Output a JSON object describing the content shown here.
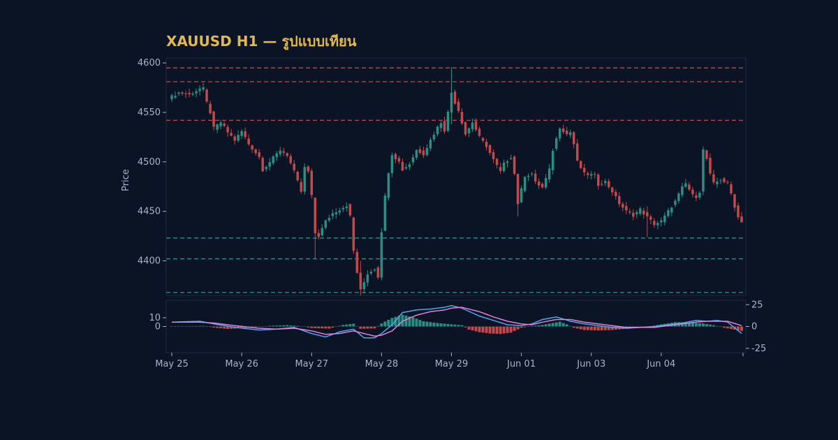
{
  "colors": {
    "background": "#0b1425",
    "panel": "#0b1425",
    "frame": "#1f2a3d",
    "text": "#aab3c5",
    "title": "#e1b84d",
    "bull": "#2a8f83",
    "bear": "#c4494a",
    "support": "#2f8f87",
    "resistance": "#c4494a",
    "macd_line": "#4aa8f0",
    "signal_line": "#e27fd6"
  },
  "chart_data": {
    "type": "candlestick",
    "title": "XAUUSD H1 — รูปแบบเทียน",
    "ylabel": "Price",
    "ylim": [
      4365,
      4605
    ],
    "yticks": [
      4400,
      4450,
      4500,
      4550,
      4600
    ],
    "x_tick_labels": [
      "May 25",
      "May 26",
      "May 27",
      "May 28",
      "May 29",
      "Jun 01",
      "Jun 03",
      "Jun 04"
    ],
    "x_tick_positions": [
      0,
      20,
      40,
      60,
      80,
      100,
      120,
      140
    ],
    "x_range": [
      0,
      163
    ],
    "resistance_levels": [
      4595,
      4581,
      4542
    ],
    "support_levels": [
      4423,
      4402,
      4368
    ],
    "key_closes": [
      [
        0,
        4566
      ],
      [
        2,
        4570
      ],
      [
        5,
        4568
      ],
      [
        8,
        4574
      ],
      [
        9,
        4574
      ],
      [
        10,
        4560
      ],
      [
        11,
        4550
      ],
      [
        12,
        4534
      ],
      [
        14,
        4540
      ],
      [
        16,
        4530
      ],
      [
        18,
        4522
      ],
      [
        20,
        4531
      ],
      [
        22,
        4518
      ],
      [
        25,
        4505
      ],
      [
        26,
        4492
      ],
      [
        28,
        4500
      ],
      [
        31,
        4512
      ],
      [
        33,
        4507
      ],
      [
        35,
        4490
      ],
      [
        37,
        4470
      ],
      [
        38,
        4494
      ],
      [
        39,
        4490
      ],
      [
        40,
        4465
      ],
      [
        41,
        4428
      ],
      [
        42,
        4425
      ],
      [
        44,
        4440
      ],
      [
        46,
        4448
      ],
      [
        48,
        4452
      ],
      [
        50,
        4456
      ],
      [
        51,
        4445
      ],
      [
        52,
        4410
      ],
      [
        53,
        4388
      ],
      [
        54,
        4370
      ],
      [
        56,
        4387
      ],
      [
        58,
        4392
      ],
      [
        59,
        4384
      ],
      [
        60,
        4430
      ],
      [
        61,
        4465
      ],
      [
        62,
        4490
      ],
      [
        63,
        4508
      ],
      [
        65,
        4500
      ],
      [
        66,
        4492
      ],
      [
        68,
        4498
      ],
      [
        70,
        4512
      ],
      [
        72,
        4508
      ],
      [
        74,
        4522
      ],
      [
        76,
        4535
      ],
      [
        77,
        4540
      ],
      [
        78,
        4532
      ],
      [
        79,
        4550
      ],
      [
        80,
        4570
      ],
      [
        81,
        4560
      ],
      [
        82,
        4552
      ],
      [
        84,
        4528
      ],
      [
        86,
        4540
      ],
      [
        88,
        4525
      ],
      [
        90,
        4516
      ],
      [
        92,
        4502
      ],
      [
        94,
        4490
      ],
      [
        95,
        4498
      ],
      [
        97,
        4505
      ],
      [
        98,
        4488
      ],
      [
        99,
        4458
      ],
      [
        100,
        4472
      ],
      [
        101,
        4486
      ],
      [
        103,
        4488
      ],
      [
        104,
        4479
      ],
      [
        106,
        4474
      ],
      [
        108,
        4492
      ],
      [
        109,
        4512
      ],
      [
        111,
        4535
      ],
      [
        113,
        4528
      ],
      [
        114,
        4530
      ],
      [
        115,
        4518
      ],
      [
        116,
        4500
      ],
      [
        118,
        4488
      ],
      [
        120,
        4487
      ],
      [
        121,
        4486
      ],
      [
        122,
        4477
      ],
      [
        124,
        4480
      ],
      [
        126,
        4470
      ],
      [
        128,
        4458
      ],
      [
        130,
        4450
      ],
      [
        132,
        4446
      ],
      [
        134,
        4452
      ],
      [
        136,
        4444
      ],
      [
        138,
        4437
      ],
      [
        140,
        4440
      ],
      [
        142,
        4450
      ],
      [
        144,
        4460
      ],
      [
        146,
        4474
      ],
      [
        147,
        4478
      ],
      [
        149,
        4466
      ],
      [
        150,
        4465
      ],
      [
        151,
        4470
      ],
      [
        152,
        4512
      ],
      [
        153,
        4503
      ],
      [
        154,
        4487
      ],
      [
        155,
        4478
      ],
      [
        157,
        4482
      ],
      [
        159,
        4478
      ],
      [
        160,
        4468
      ],
      [
        161,
        4455
      ],
      [
        162,
        4444
      ],
      [
        163,
        4440
      ]
    ],
    "wick_extremes": [
      [
        80,
        4596,
        4538
      ],
      [
        41,
        4448,
        4402
      ],
      [
        54,
        4400,
        4365
      ],
      [
        99,
        4470,
        4445
      ],
      [
        136,
        4455,
        4424
      ]
    ],
    "macd": {
      "ylim": [
        -30,
        30
      ],
      "yticks_left": [
        0,
        10
      ],
      "yticks_right": [
        25,
        0,
        -25
      ],
      "histogram_key": [
        [
          0,
          0
        ],
        [
          5,
          0.4
        ],
        [
          9,
          0.6
        ],
        [
          12,
          -1.2
        ],
        [
          16,
          -2.8
        ],
        [
          22,
          -1.5
        ],
        [
          28,
          0.8
        ],
        [
          33,
          1.6
        ],
        [
          37,
          0.4
        ],
        [
          40,
          -1.8
        ],
        [
          45,
          -2.4
        ],
        [
          49,
          1.8
        ],
        [
          52,
          3.2
        ],
        [
          54,
          -2.6
        ],
        [
          58,
          -2.2
        ],
        [
          60,
          3.5
        ],
        [
          63,
          9.8
        ],
        [
          66,
          13.5
        ],
        [
          69,
          10.5
        ],
        [
          72,
          6.0
        ],
        [
          76,
          4.0
        ],
        [
          80,
          2.5
        ],
        [
          83,
          1.5
        ],
        [
          85,
          -3.5
        ],
        [
          88,
          -6.5
        ],
        [
          91,
          -8.0
        ],
        [
          94,
          -8.5
        ],
        [
          97,
          -7.0
        ],
        [
          100,
          -1.5
        ],
        [
          103,
          0.5
        ],
        [
          106,
          1.8
        ],
        [
          109,
          4.0
        ],
        [
          111,
          5.5
        ],
        [
          113,
          2.5
        ],
        [
          115,
          -1.5
        ],
        [
          118,
          -4.0
        ],
        [
          122,
          -4.5
        ],
        [
          126,
          -4.0
        ],
        [
          130,
          -2.5
        ],
        [
          134,
          -1.0
        ],
        [
          137,
          0.2
        ],
        [
          140,
          2.5
        ],
        [
          144,
          5.0
        ],
        [
          148,
          4.5
        ],
        [
          152,
          3.5
        ],
        [
          155,
          1.5
        ],
        [
          158,
          -1.5
        ],
        [
          161,
          -3.5
        ],
        [
          163,
          -5.0
        ]
      ],
      "macd_key": [
        [
          0,
          5
        ],
        [
          8,
          6
        ],
        [
          12,
          3
        ],
        [
          18,
          -1
        ],
        [
          25,
          -4
        ],
        [
          30,
          -3
        ],
        [
          35,
          -1
        ],
        [
          40,
          -8
        ],
        [
          44,
          -12
        ],
        [
          48,
          -6
        ],
        [
          52,
          -3
        ],
        [
          55,
          -13
        ],
        [
          58,
          -13
        ],
        [
          60,
          -8
        ],
        [
          63,
          2
        ],
        [
          66,
          16
        ],
        [
          70,
          19
        ],
        [
          74,
          20
        ],
        [
          78,
          22
        ],
        [
          80,
          24
        ],
        [
          83,
          21
        ],
        [
          88,
          12
        ],
        [
          92,
          7
        ],
        [
          96,
          2
        ],
        [
          100,
          1
        ],
        [
          103,
          3
        ],
        [
          106,
          8
        ],
        [
          110,
          11
        ],
        [
          114,
          6
        ],
        [
          118,
          3
        ],
        [
          122,
          1
        ],
        [
          126,
          -1
        ],
        [
          130,
          -2
        ],
        [
          134,
          -1
        ],
        [
          138,
          0
        ],
        [
          142,
          2
        ],
        [
          146,
          4
        ],
        [
          150,
          7
        ],
        [
          153,
          6
        ],
        [
          156,
          7
        ],
        [
          159,
          5
        ],
        [
          163,
          -8
        ]
      ],
      "signal_key": [
        [
          0,
          5
        ],
        [
          8,
          5
        ],
        [
          12,
          4
        ],
        [
          18,
          1
        ],
        [
          25,
          -2
        ],
        [
          30,
          -3
        ],
        [
          35,
          -2
        ],
        [
          40,
          -5
        ],
        [
          44,
          -9
        ],
        [
          48,
          -8
        ],
        [
          52,
          -5
        ],
        [
          55,
          -8
        ],
        [
          58,
          -11
        ],
        [
          60,
          -10
        ],
        [
          63,
          -5
        ],
        [
          66,
          6
        ],
        [
          70,
          13
        ],
        [
          74,
          17
        ],
        [
          78,
          19
        ],
        [
          80,
          21
        ],
        [
          83,
          22
        ],
        [
          88,
          17
        ],
        [
          92,
          11
        ],
        [
          96,
          6
        ],
        [
          100,
          3
        ],
        [
          103,
          2
        ],
        [
          106,
          5
        ],
        [
          110,
          8
        ],
        [
          114,
          8
        ],
        [
          118,
          5
        ],
        [
          122,
          3
        ],
        [
          126,
          1
        ],
        [
          130,
          -1
        ],
        [
          134,
          -1
        ],
        [
          138,
          -1
        ],
        [
          142,
          1
        ],
        [
          146,
          3
        ],
        [
          150,
          5
        ],
        [
          153,
          6
        ],
        [
          156,
          6
        ],
        [
          159,
          6
        ],
        [
          163,
          1
        ]
      ]
    }
  }
}
